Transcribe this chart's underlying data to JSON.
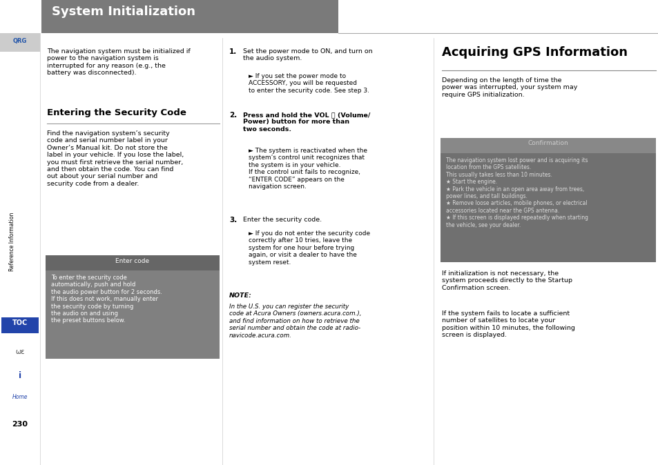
{
  "page_bg": "#ffffff",
  "header_bg": "#7a7a7a",
  "header_text": "System Initialization",
  "header_text_color": "#ffffff",
  "sidebar_bg": "#ffffff",
  "page_number": "230",
  "col1_intro": "The navigation system must be initialized if\npower to the navigation system is\ninterrupted for any reason (e.g., the\nbattery was disconnected).",
  "col1_heading": "Entering the Security Code",
  "col1_body": "Find the navigation system’s security\ncode and serial number label in your\nOwner’s Manual kit. Do not store the\nlabel in your vehicle. If you lose the label,\nyou must first retrieve the serial number,\nand then obtain the code. You can find\nout about your serial number and\nsecurity code from a dealer.",
  "enter_code_title": "Enter code",
  "enter_code_body": "To enter the security code\nautomatically, push and hold\nthe audio power button for 2 seconds.\nIf this does not work, manually enter\nthe security code by turning\nthe audio on and using\nthe preset buttons below.",
  "col3_heading": "Acquiring GPS Information",
  "col3_intro": "Depending on the length of time the\npower was interrupted, your system may\nrequire GPS initialization.",
  "confirmation_title": "Confirmation",
  "confirmation_body": "The navigation system lost power and is acquiring its\nlocation from the GPS satellites.\nThis usually takes less than 10 minutes.\n★ Start the engine.\n★ Park the vehicle in an open area away from trees,\npower lines, and tall buildings.\n★ Remove loose articles, mobile phones, or electrical\naccessories located near the GPS antenna.\n★ If this screen is displayed repeatedly when starting\nthe vehicle, see your dealer.",
  "col3_body1": "If initialization is not necessary, the\nsystem proceeds directly to the Startup\nConfirmation screen.",
  "col3_body2": "If the system fails to locate a sufficient\nnumber of satellites to locate your\nposition within 10 minutes, the following\nscreen is displayed.",
  "note_label": "NOTE:",
  "note_text": "In the U.S. you can register the security\ncode at Acura Owners (owners.acura.com.),\nand find information on how to retrieve the\nserial number and obtain the code at radio-\nnavicode.acura.com.",
  "steps": [
    {
      "num": "1.",
      "text": "Set the power mode to ON, and turn on\nthe audio system.",
      "sub": "► If you set the power mode to\nACCESSORY, you will be requested\nto enter the security code. See step 3."
    },
    {
      "num": "2.",
      "text": "Press and hold the VOL ⓦ (Volume/\nPower) button for more than\ntwo seconds.",
      "sub": "► The system is reactivated when the\nsystem’s control unit recognizes that\nthe system is in your vehicle.\nIf the control unit fails to recognize,\n“ENTER CODE” appears on the\nnavigation screen."
    },
    {
      "num": "3.",
      "text": "Enter the security code.",
      "sub": "► If you do not enter the security code\ncorrectly after 10 tries, leave the\nsystem for one hour before trying\nagain, or visit a dealer to have the\nsystem reset."
    }
  ]
}
